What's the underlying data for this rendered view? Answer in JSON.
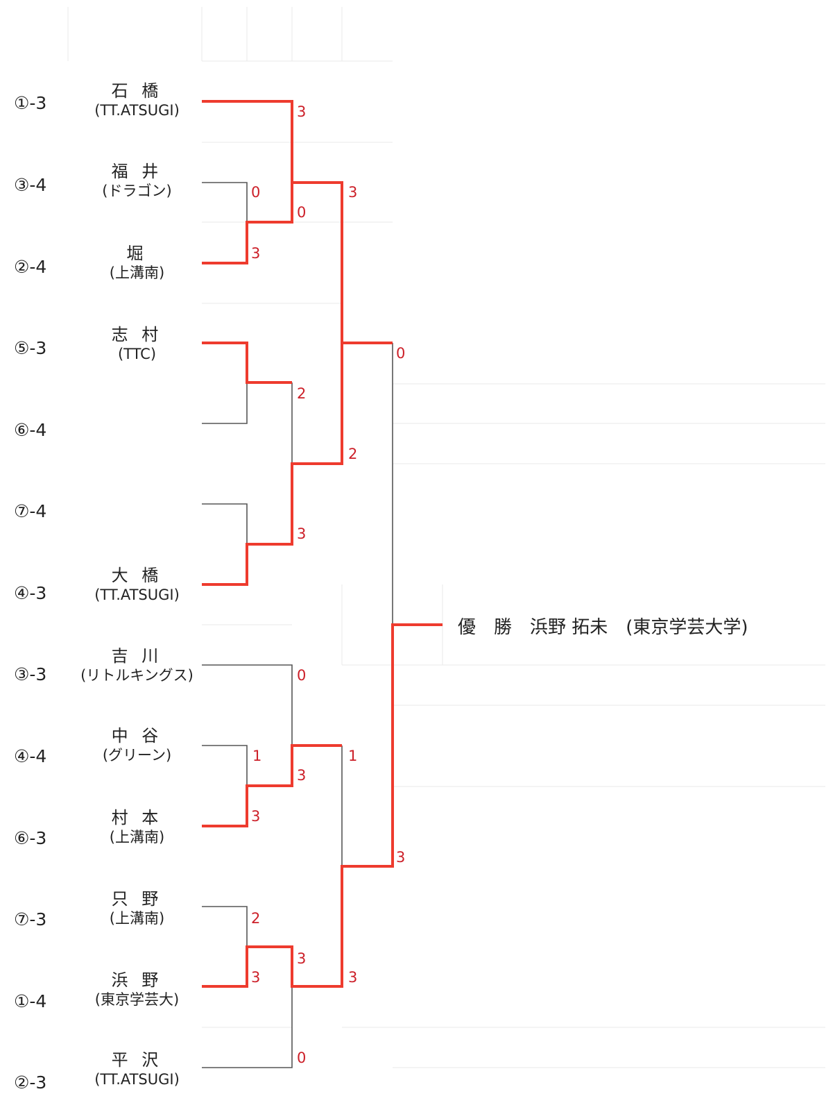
{
  "colors": {
    "winner_line": "#ee3b2e",
    "loser_line": "#555555",
    "score": "#cc1f28",
    "grid": "#e8e8e8",
    "text": "#222222"
  },
  "entries": [
    {
      "seed": "①-3",
      "name": "石 橋",
      "team": "(TT.ATSUGI)"
    },
    {
      "seed": "③-4",
      "name": "福 井",
      "team": "(ドラゴン)"
    },
    {
      "seed": "②-4",
      "name": "堀",
      "team": "(上溝南)"
    },
    {
      "seed": "⑤-3",
      "name": "志 村",
      "team": "(TTC)"
    },
    {
      "seed": "⑥-4",
      "name": "",
      "team": ""
    },
    {
      "seed": "⑦-4",
      "name": "",
      "team": ""
    },
    {
      "seed": "④-3",
      "name": "大 橋",
      "team": "(TT.ATSUGI)"
    },
    {
      "seed": "③-3",
      "name": "吉 川",
      "team": "(リトルキングス)"
    },
    {
      "seed": "④-4",
      "name": "中 谷",
      "team": "(グリーン)"
    },
    {
      "seed": "⑥-3",
      "name": "村 本",
      "team": "(上溝南)"
    },
    {
      "seed": "⑦-3",
      "name": "只 野",
      "team": "(上溝南)"
    },
    {
      "seed": "①-4",
      "name": "浜 野",
      "team": "(東京学芸大)"
    },
    {
      "seed": "②-3",
      "name": "平 沢",
      "team": "(TT.ATSUGI)"
    }
  ],
  "scores": [
    "3",
    "0",
    "0",
    "3",
    "3",
    "2",
    "2",
    "3",
    "0",
    "0",
    "1",
    "3",
    "1",
    "3",
    "2",
    "3",
    "3",
    "3",
    "0",
    "3"
  ],
  "champion": "優　勝　浜野 拓未　(東京学芸大学)"
}
